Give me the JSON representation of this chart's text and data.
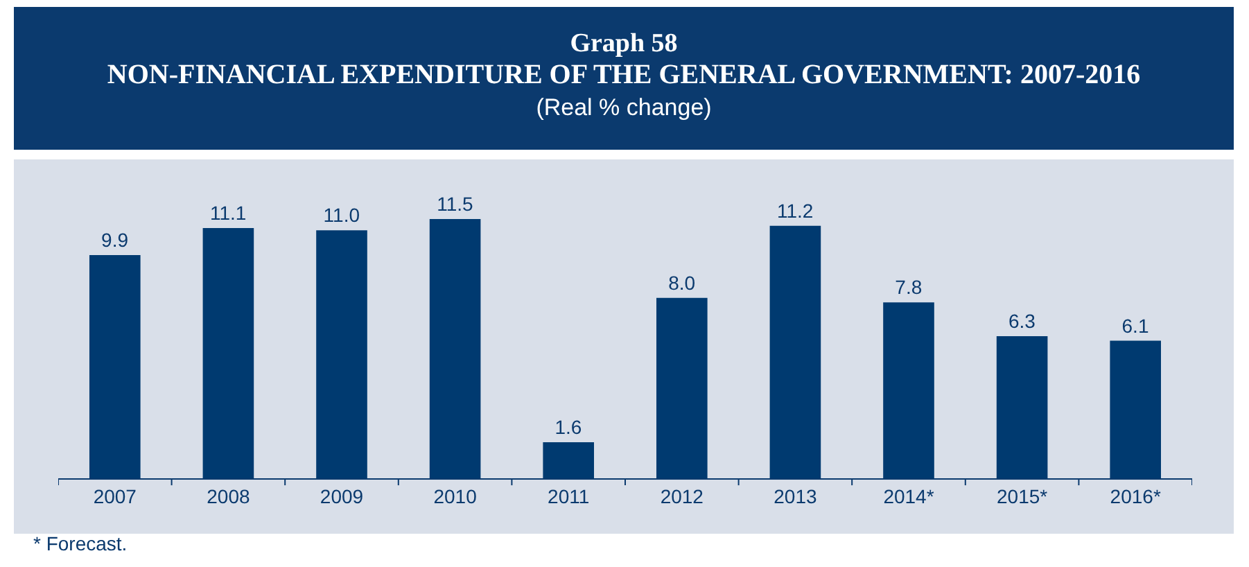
{
  "chart_data": {
    "type": "bar",
    "title": "Graph 58",
    "subtitle": "NON-FINANCIAL EXPENDITURE OF THE GENERAL GOVERNMENT: 2007-2016",
    "annotations": [
      "(Real % change)",
      "* Forecast."
    ],
    "categories": [
      "2007",
      "2008",
      "2009",
      "2010",
      "2011",
      "2012",
      "2013",
      "2014*",
      "2015*",
      "2016*"
    ],
    "values": [
      9.9,
      11.1,
      11.0,
      11.5,
      1.6,
      8.0,
      11.2,
      7.8,
      6.3,
      6.1
    ],
    "value_labels": [
      "9.9",
      "11.1",
      "11.0",
      "11.5",
      "1.6",
      "8.0",
      "11.2",
      "7.8",
      "6.3",
      "6.1"
    ],
    "color": "#003a70",
    "grid": false,
    "tick_labels": "x"
  }
}
